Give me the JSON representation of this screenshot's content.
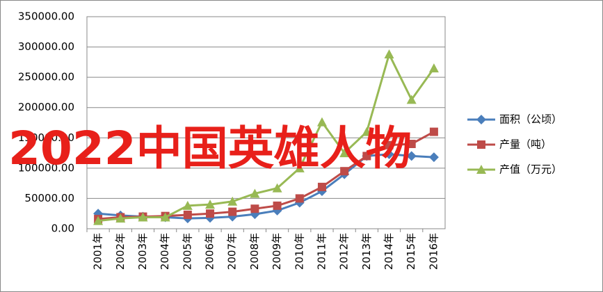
{
  "chart_data": {
    "type": "line",
    "annotation": "2022中国英雄人物",
    "categories": [
      "2001年",
      "2002年",
      "2003年",
      "2004年",
      "2005年",
      "2006年",
      "2007年",
      "2008年",
      "2009年",
      "2010年",
      "2011年",
      "2012年",
      "2013年",
      "2014年",
      "2015年",
      "2016年"
    ],
    "series": [
      {
        "name": "面积（公顷）",
        "color": "#4a7ebb",
        "marker": "diamond",
        "values": [
          25000,
          22000,
          20000,
          19000,
          17000,
          18000,
          20000,
          24000,
          30000,
          43000,
          62000,
          90000,
          120000,
          123000,
          120000,
          118000
        ]
      },
      {
        "name": "产量（吨）",
        "color": "#be4b48",
        "marker": "square",
        "values": [
          16000,
          19000,
          20000,
          21000,
          23000,
          25000,
          28000,
          33000,
          38000,
          50000,
          69000,
          95000,
          120000,
          138000,
          140000,
          160000
        ]
      },
      {
        "name": "产值（万元）",
        "color": "#98b954",
        "marker": "triangle",
        "values": [
          13000,
          17000,
          19000,
          19000,
          38000,
          40000,
          45000,
          58000,
          67000,
          100000,
          176000,
          125000,
          160000,
          288000,
          213000,
          265000
        ]
      }
    ],
    "ylim": [
      0,
      350000
    ],
    "yticks": [
      {
        "value": 0,
        "label": "0.00"
      },
      {
        "value": 50000,
        "label": "50000.00"
      },
      {
        "value": 100000,
        "label": "100000.00"
      },
      {
        "value": 150000,
        "label": "150000.00"
      },
      {
        "value": 200000,
        "label": "200000.00"
      },
      {
        "value": 250000,
        "label": "250000.00"
      },
      {
        "value": 300000,
        "label": "300000.00"
      },
      {
        "value": 350000,
        "label": "350000.00"
      }
    ],
    "grid": true,
    "legend": "right"
  }
}
